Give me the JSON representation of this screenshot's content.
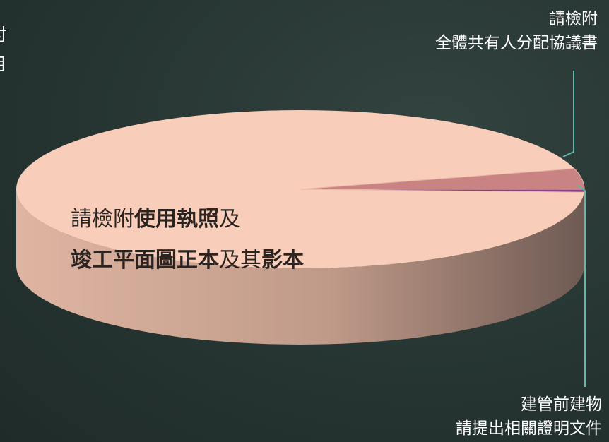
{
  "chart_data": {
    "type": "pie",
    "title": "",
    "slices": [
      {
        "label_lines": [
          "請檢附使用執照及",
          "竣工平面圖正本及其影本"
        ],
        "value": 95.2,
        "color": "#f8cdb9"
      },
      {
        "label_lines": [
          "請檢附",
          "全體共有人分配協議書"
        ],
        "value": 4.2,
        "color": "#c98383"
      },
      {
        "label_lines": [
          "建管前建物",
          "請提出相關證明文件"
        ],
        "value": 0.6,
        "color": "#8a3f8f"
      }
    ],
    "main_label_segments": [
      [
        {
          "text": "請檢附",
          "bold": false
        },
        {
          "text": "使用執照",
          "bold": true
        },
        {
          "text": "及",
          "bold": false
        }
      ],
      [
        {
          "text": "竣工平面圖正本",
          "bold": true
        },
        {
          "text": "及其",
          "bold": false
        },
        {
          "text": "影本",
          "bold": true
        }
      ]
    ],
    "cut_off_label_lines": [
      "付",
      "月"
    ],
    "leader_color": "#5fb9a8"
  }
}
